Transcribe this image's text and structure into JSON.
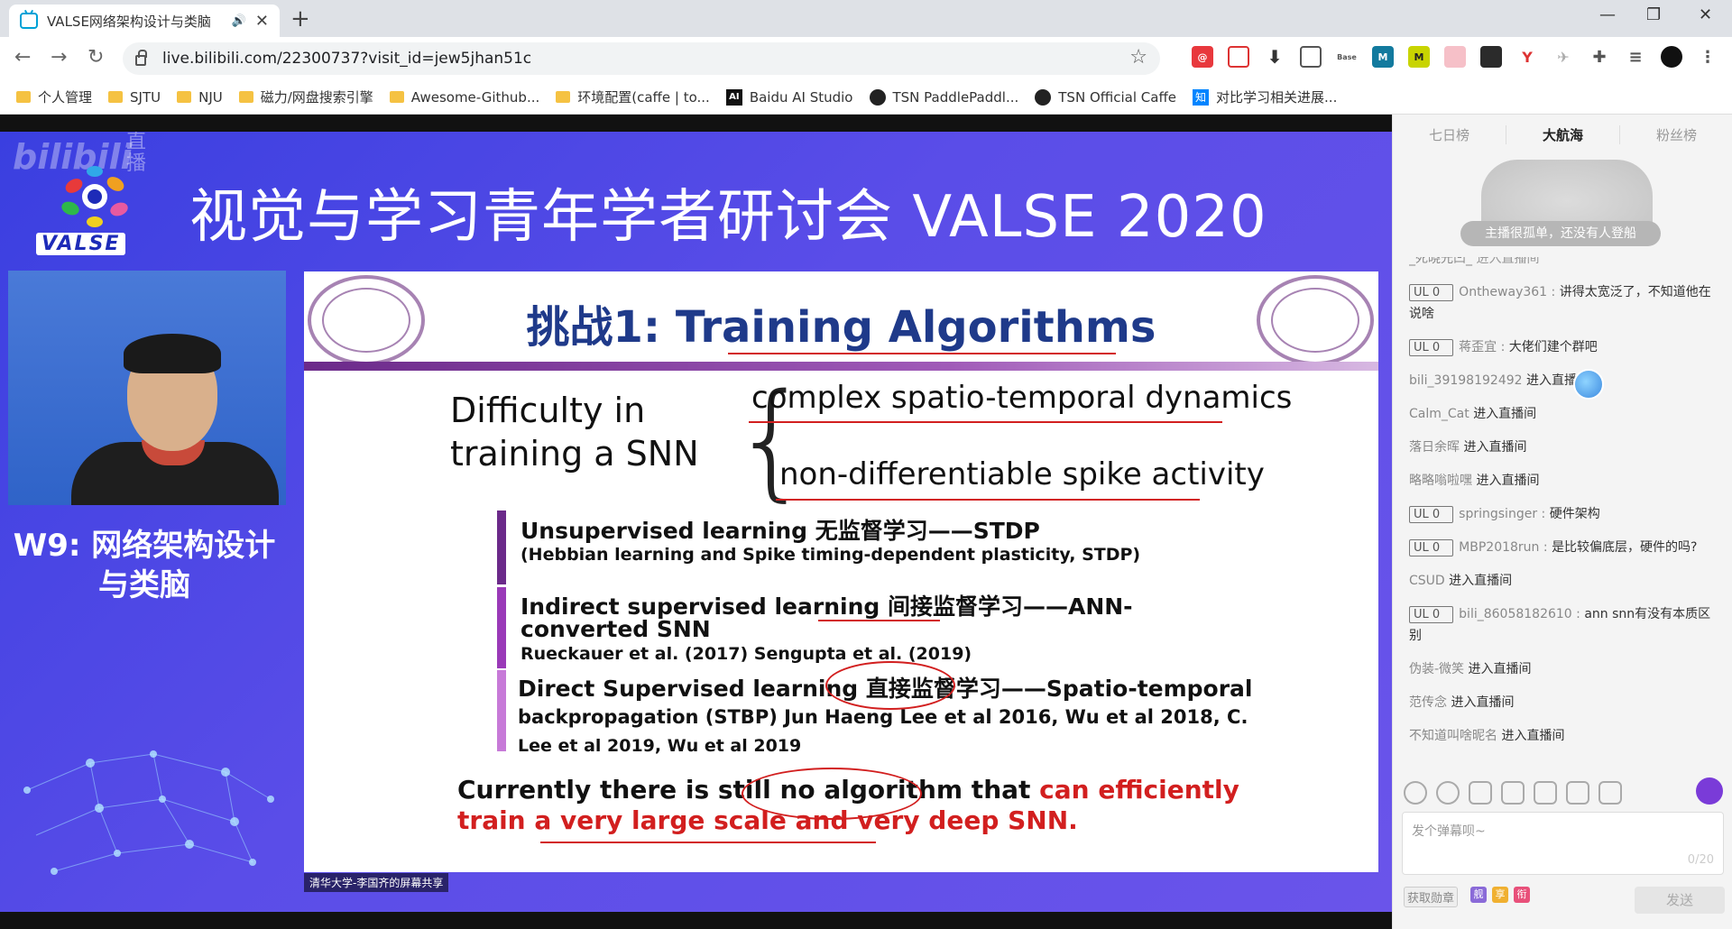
{
  "browser": {
    "tab": {
      "title": "VALSE网络架构设计与类脑",
      "audio_icon": "speaker-icon",
      "close": "✕"
    },
    "new_tab": "+",
    "window": {
      "minimize": "—",
      "maximize": "❐",
      "close": "✕"
    },
    "nav": {
      "back": "←",
      "forward": "→",
      "reload": "↻"
    },
    "url": "live.bilibili.com/22300737?visit_id=jew5jhan51c",
    "star": "☆",
    "bookmarks": [
      {
        "label": "个人管理",
        "icon": "folder"
      },
      {
        "label": "SJTU",
        "icon": "folder"
      },
      {
        "label": "NJU",
        "icon": "folder"
      },
      {
        "label": "磁力/网盘搜索引擎",
        "icon": "folder"
      },
      {
        "label": "Awesome-Github...",
        "icon": "folder"
      },
      {
        "label": "环境配置(caffe | to...",
        "icon": "folder"
      },
      {
        "label": "Baidu AI Studio",
        "icon": "ai"
      },
      {
        "label": "TSN PaddlePaddl...",
        "icon": "github"
      },
      {
        "label": "TSN Official Caffe",
        "icon": "github"
      },
      {
        "label": "对比学习相关进展...",
        "icon": "zhihu"
      }
    ]
  },
  "stream": {
    "watermark": "bilibili",
    "watermark_live": "直播",
    "banner_title": "视觉与学习青年学者研讨会 VALSE 2020",
    "logo_text": "VALSE",
    "session_title_line1": "W9: 网络架构设计",
    "session_title_line2": "与类脑",
    "share_tag": "清华大学-李国齐的屏幕共享",
    "slide": {
      "heading_cn": "挑战1: ",
      "heading_en": "Training Algorithms",
      "difficulty_line1": "Difficulty in",
      "difficulty_line2": "training a SNN",
      "branch1": "complex spatio-temporal dynamics",
      "branch2": "non-differentiable spike activity",
      "item1_title": "Unsupervised learning 无监督学习——STDP",
      "item1_sub": "(Hebbian learning and Spike timing-dependent plasticity, STDP)",
      "item2_title": "Indirect supervised learning 间接监督学习——ANN-",
      "item2_title2": "converted SNN",
      "item2_sub": "Rueckauer et al. (2017)  Sengupta et al. (2019)",
      "item3_title": "Direct Supervised learning 直接监督学习——Spatio-temporal",
      "item3_line2": "backpropagation (STBP) Jun Haeng Lee et al 2016, Wu et al 2018, C.",
      "item3_line3": "Lee et al 2019,  Wu et al 2019",
      "conclusion_black": "Currently there is still no algorithm that ",
      "conclusion_red": "can efficiently",
      "conclusion_red2": "train a very large scale and very deep SNN."
    }
  },
  "sidebar": {
    "rank_tabs": [
      "七日榜",
      "大航海",
      "粉丝榜"
    ],
    "empty_text": "主播很孤单，还没有人登船",
    "chat": [
      {
        "partial": true,
        "name": "_死晓光凹_",
        "content": "进入直播间"
      },
      {
        "badge": "UL 0",
        "name": "Ontheway361",
        "content": "讲得太宽泛了，不知道他在说啥"
      },
      {
        "badge": "UL 0",
        "name": "蒋歪宜",
        "content": "大佬们建个群吧"
      },
      {
        "name": "bili_39198192492",
        "content": "进入直播间"
      },
      {
        "name": "Calm_Cat",
        "content": "进入直播间"
      },
      {
        "name": "落日余晖",
        "content": "进入直播间"
      },
      {
        "name": "略略嗡啦嘿",
        "content": "进入直播间"
      },
      {
        "badge": "UL 0",
        "name": "springsinger",
        "content": "硬件架构"
      },
      {
        "badge": "UL 0",
        "name": "MBP2018run",
        "content": "是比较偏底层，硬件的吗?"
      },
      {
        "name": "CSUD",
        "content": "进入直播间"
      },
      {
        "badge": "UL 0",
        "name": "bili_86058182610",
        "content": "ann snn有没有本质区别"
      },
      {
        "name": "伪装-微笑",
        "content": "进入直播间"
      },
      {
        "name": "范传念",
        "content": "进入直播间"
      },
      {
        "name": "不知道叫啥昵名",
        "content": "进入直播间"
      }
    ],
    "input_placeholder": "发个弹幕呗~",
    "input_count": "0/20",
    "medal_button": "获取勋章",
    "mini_badges": [
      "舰",
      "享",
      "衔"
    ],
    "send_button": "发送"
  }
}
